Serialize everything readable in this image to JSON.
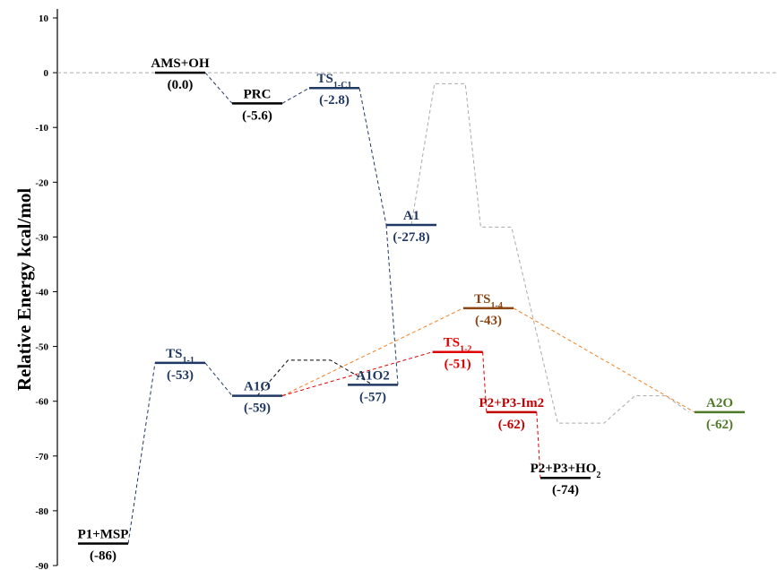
{
  "chart_data": {
    "type": "line",
    "title": "",
    "xlabel": "",
    "ylabel": "Relative Energy kcal/mol",
    "ylim": [
      -90,
      10
    ],
    "yticks": [
      10,
      0,
      -10,
      -20,
      -30,
      -40,
      -50,
      -60,
      -70,
      -80,
      -90
    ],
    "grid": false,
    "zero_reference": "dashed gray",
    "levels": [
      {
        "id": "ams_oh",
        "name": "AMS+OH",
        "value_label": "(0.0)",
        "x": 1.0,
        "y": 0.0,
        "color": "#000000"
      },
      {
        "id": "prc",
        "name": "PRC",
        "value_label": "(-5.6)",
        "x": 2.0,
        "y": -5.6,
        "color": "#000000"
      },
      {
        "id": "ts_1_c1",
        "name": "TS",
        "sub": "1-C1",
        "value_label": "(-2.8)",
        "x": 3.0,
        "y": -2.8,
        "color": "#1f3864"
      },
      {
        "id": "a1",
        "name": "A1",
        "value_label": "(-27.8)",
        "x": 4.0,
        "y": -27.8,
        "color": "#1f3864"
      },
      {
        "id": "p1_msp",
        "name": "P1+MSP",
        "value_label": "(-86)",
        "x": 0.0,
        "y": -86,
        "color": "#000000"
      },
      {
        "id": "ts_1_1",
        "name": "TS",
        "sub": "1-1",
        "value_label": "(-53)",
        "x": 1.0,
        "y": -53,
        "color": "#1f3864"
      },
      {
        "id": "a1o",
        "name": "A1O",
        "value_label": "(-59)",
        "x": 2.0,
        "y": -59,
        "color": "#1f3864"
      },
      {
        "id": "a1o2",
        "name": "A1O2",
        "value_label": "(-57)",
        "x": 3.5,
        "y": -57,
        "color": "#1f3864"
      },
      {
        "id": "ts_1_2",
        "name": "TS",
        "sub": "1-2",
        "value_label": "(-51)",
        "x": 4.6,
        "y": -51,
        "color": "#e00000"
      },
      {
        "id": "ts_1_4",
        "name": "TS",
        "sub": "1-4",
        "value_label": "(-43)",
        "x": 5.0,
        "y": -43,
        "color": "#8b4513"
      },
      {
        "id": "p2_p3_im2",
        "name": "P2+P3-Im2",
        "value_label": "(-62)",
        "x": 5.3,
        "y": -62,
        "color": "#c00000"
      },
      {
        "id": "p2_p3_ho2",
        "name": "P2+P3+HO",
        "sub": "2",
        "value_label": "(-74)",
        "x": 6.0,
        "y": -74,
        "color": "#000000"
      },
      {
        "id": "a2o",
        "name": "A2O",
        "value_label": "(-62)",
        "x": 8.0,
        "y": -62,
        "color": "#4e7a28"
      }
    ],
    "connections": [
      {
        "from": "ams_oh",
        "to": "prc",
        "color": "#1f3864"
      },
      {
        "from": "prc",
        "to": "ts_1_c1",
        "color": "#1f3864"
      },
      {
        "from": "ts_1_c1",
        "to": "a1",
        "color": "#1f3864"
      },
      {
        "from": "a1",
        "to": "a1o2",
        "color": "#1f3864"
      },
      {
        "from": "p1_msp",
        "to": "ts_1_1",
        "color": "#1f3864"
      },
      {
        "from": "ts_1_1",
        "to": "a1o",
        "color": "#1f3864"
      },
      {
        "from": "a1o",
        "to": "ts_1_4",
        "color": "#f08020"
      },
      {
        "from": "ts_1_4",
        "to": "a2o",
        "color": "#f08020"
      },
      {
        "from": "a1o",
        "to": "ts_1_2",
        "color": "#e00000"
      },
      {
        "from": "ts_1_2",
        "to": "p2_p3_im2",
        "color": "#e00000"
      },
      {
        "from": "p2_p3_im2",
        "to": "p2_p3_ho2",
        "color": "#e00000"
      }
    ],
    "extra_paths": [
      {
        "color": "#000000",
        "points": [
          [
            2.0,
            -59
          ],
          [
            2.4,
            -52.5
          ],
          [
            2.95,
            -52.5
          ],
          [
            3.5,
            -57
          ]
        ]
      },
      {
        "color": "#aaaaaa",
        "points": [
          [
            4.0,
            -27.8
          ],
          [
            4.3,
            -2
          ],
          [
            4.7,
            -2
          ],
          [
            4.9,
            -28.2
          ],
          [
            5.3,
            -28.2
          ],
          [
            5.9,
            -64
          ],
          [
            6.5,
            -64
          ],
          [
            6.9,
            -59
          ],
          [
            7.3,
            -59
          ],
          [
            7.6,
            -62
          ]
        ]
      }
    ]
  }
}
